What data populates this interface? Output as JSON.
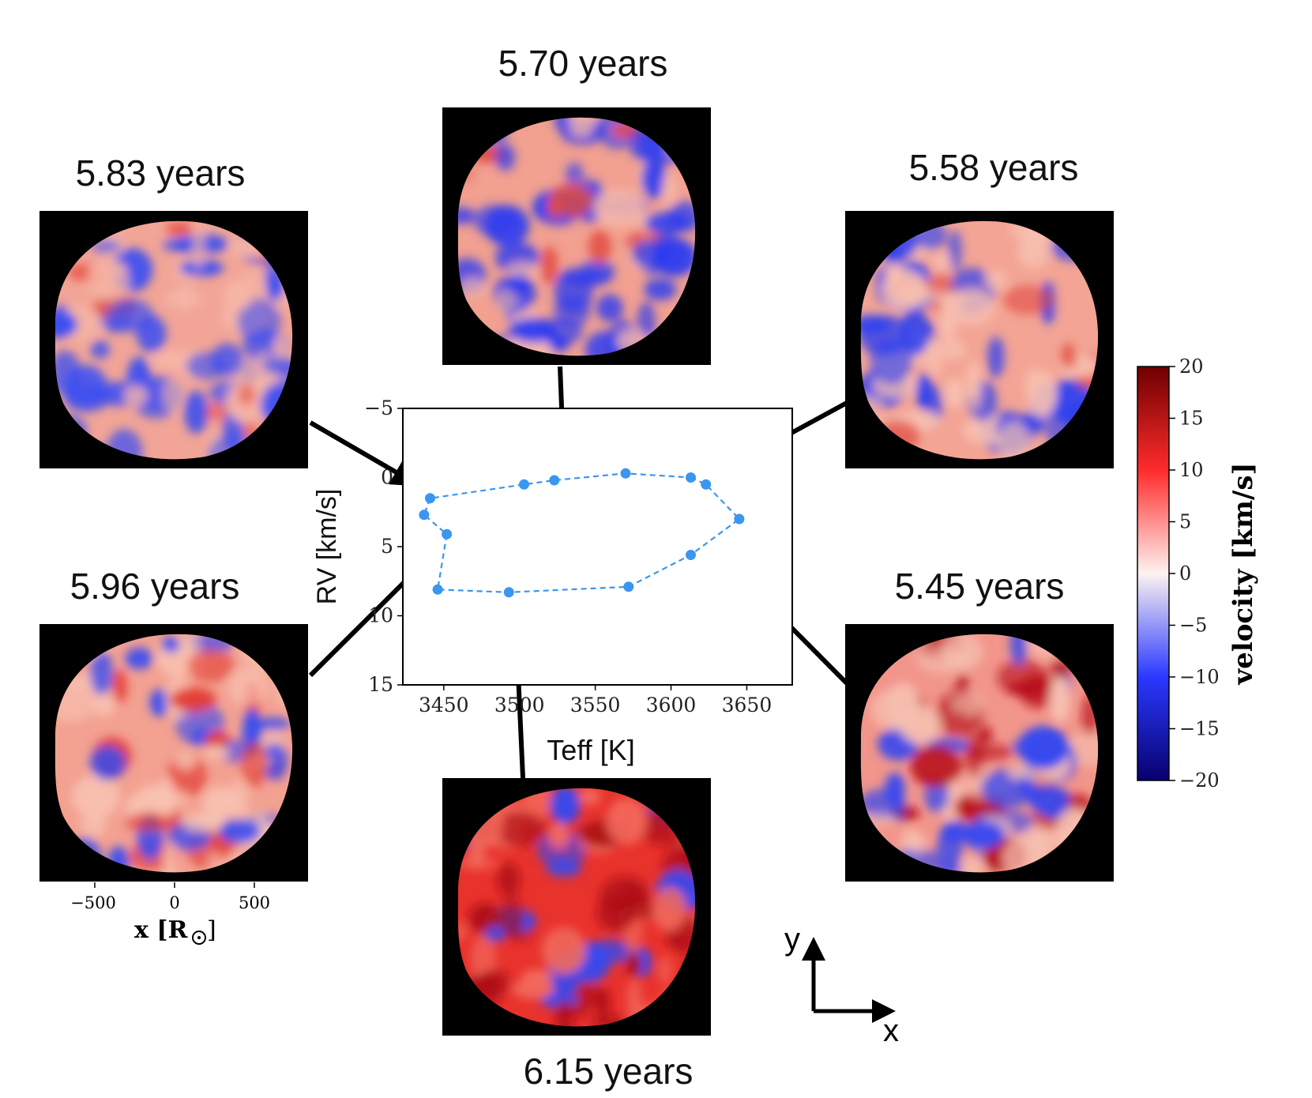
{
  "snapshots": [
    {
      "id": "s583",
      "label": "5.83 years"
    },
    {
      "id": "s570",
      "label": "5.70 years"
    },
    {
      "id": "s558",
      "label": "5.58 years"
    },
    {
      "id": "s596",
      "label": "5.96 years"
    },
    {
      "id": "s545",
      "label": "5.45 years"
    },
    {
      "id": "s615",
      "label": "6.15 years"
    }
  ],
  "map_axis": {
    "ticks": [
      "−500",
      "0",
      "500"
    ],
    "label_x": "x [R",
    "label_close": "]"
  },
  "compass": {
    "y": "y",
    "x": "x"
  },
  "colorbar": {
    "label": "velocity [km/s]",
    "ticks": [
      "20",
      "15",
      "10",
      "5",
      "0",
      "−5",
      "−10",
      "−15",
      "−20"
    ],
    "colors": {
      "min": "#08006e",
      "neg": "#2a39ff",
      "zero": "#fdf3f0",
      "pos": "#ff2b2b",
      "max": "#6e0000"
    }
  },
  "chart_data": {
    "type": "line",
    "xlabel": "Teff [K]",
    "ylabel": "RV [km/s]",
    "xlim": [
      3423,
      3680
    ],
    "ylim": [
      -5,
      15
    ],
    "y_inverted": true,
    "xticks": [
      3450,
      3500,
      3550,
      3600,
      3650
    ],
    "yticks": [
      -5,
      0,
      5,
      10,
      15
    ],
    "xtick_labels": [
      "3450",
      "3500",
      "3550",
      "3600",
      "3650"
    ],
    "ytick_labels": [
      "−5",
      "0",
      "5",
      "10",
      "15"
    ],
    "series_color": "#3a96ee",
    "points": [
      {
        "x": 3613,
        "y": 0.0
      },
      {
        "x": 3623,
        "y": 0.5
      },
      {
        "x": 3645,
        "y": 3.0
      },
      {
        "x": 3613,
        "y": 5.6
      },
      {
        "x": 3572,
        "y": 7.9
      },
      {
        "x": 3493,
        "y": 8.3
      },
      {
        "x": 3446,
        "y": 8.1
      },
      {
        "x": 3452,
        "y": 4.1
      },
      {
        "x": 3437,
        "y": 2.7
      },
      {
        "x": 3441,
        "y": 1.5
      },
      {
        "x": 3503,
        "y": 0.5
      },
      {
        "x": 3523,
        "y": 0.2
      },
      {
        "x": 3570,
        "y": -0.3
      }
    ],
    "closed": true
  }
}
